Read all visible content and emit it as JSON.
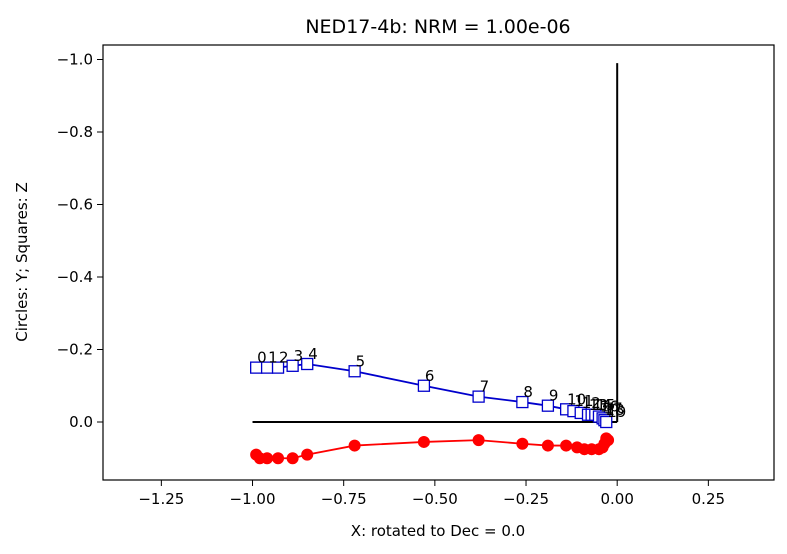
{
  "chart_data": {
    "type": "scatter",
    "title": "NED17-4b: NRM =  1.00e-06",
    "xlabel": "X: rotated to Dec =     0.0",
    "ylabel": "Circles: Y; Squares: Z",
    "xlim": [
      -1.41,
      0.43
    ],
    "ylim": [
      0.16,
      -1.04
    ],
    "y_inverted": true,
    "grid": false,
    "x_ticks": [
      -1.25,
      -1.0,
      -0.75,
      -0.5,
      -0.25,
      0.0,
      0.25
    ],
    "x_tick_labels": [
      "−1.25",
      "−1.00",
      "−0.75",
      "−0.50",
      "−0.25",
      "0.00",
      "0.25"
    ],
    "y_ticks": [
      -1.0,
      -0.8,
      -0.6,
      -0.4,
      -0.2,
      0.0
    ],
    "y_tick_labels": [
      "−1.0",
      "−0.8",
      "−0.6",
      "−0.4",
      "−0.2",
      "0.0"
    ],
    "axes_lines": [
      {
        "x": [
          -1.0,
          0.0
        ],
        "y": [
          0.0,
          0.0
        ],
        "color": "#000000"
      },
      {
        "x": [
          0.0,
          0.0
        ],
        "y": [
          0.0,
          -0.99
        ],
        "color": "#000000"
      }
    ],
    "series": [
      {
        "marker": "circle",
        "color": "#ff0000",
        "x": [
          -0.99,
          -0.98,
          -0.96,
          -0.93,
          -0.89,
          -0.85,
          -0.72,
          -0.53,
          -0.38,
          -0.26,
          -0.19,
          -0.14,
          -0.11,
          -0.09,
          -0.07,
          -0.05,
          -0.04,
          -0.035,
          -0.03,
          -0.025
        ],
        "y": [
          0.09,
          0.1,
          0.1,
          0.1,
          0.1,
          0.09,
          0.065,
          0.055,
          0.05,
          0.06,
          0.065,
          0.065,
          0.07,
          0.075,
          0.075,
          0.075,
          0.07,
          0.06,
          0.045,
          0.05
        ]
      },
      {
        "marker": "square",
        "color": "#0000cc",
        "x": [
          -0.99,
          -0.96,
          -0.93,
          -0.89,
          -0.85,
          -0.72,
          -0.53,
          -0.38,
          -0.26,
          -0.19,
          -0.14,
          -0.12,
          -0.1,
          -0.08,
          -0.07,
          -0.06,
          -0.05,
          -0.04,
          -0.035,
          -0.03
        ],
        "y": [
          -0.15,
          -0.15,
          -0.15,
          -0.155,
          -0.16,
          -0.14,
          -0.1,
          -0.07,
          -0.055,
          -0.045,
          -0.035,
          -0.03,
          -0.025,
          -0.02,
          -0.02,
          -0.02,
          -0.015,
          -0.01,
          -0.005,
          0.0
        ],
        "labels": [
          "0",
          "1",
          "2",
          "3",
          "4",
          "5",
          "6",
          "7",
          "8",
          "9",
          "10",
          "11",
          "12",
          "13",
          "14",
          "15",
          "16",
          "17",
          "18",
          "19"
        ]
      }
    ]
  }
}
